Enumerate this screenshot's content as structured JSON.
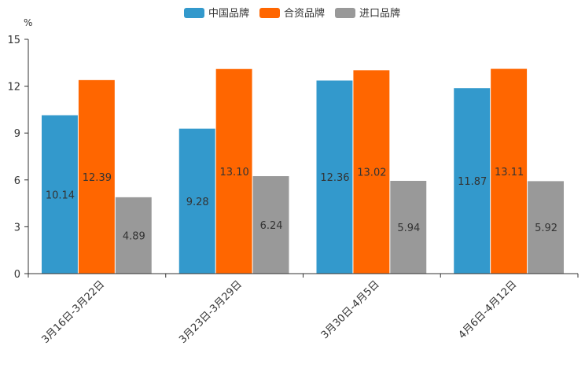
{
  "chart_data": {
    "type": "bar",
    "unit_label": "%",
    "categories": [
      "3月16日-3月22日",
      "3月23日-3月29日",
      "3月30日-4月5日",
      "4月6日-4月12日"
    ],
    "series": [
      {
        "name": "中国品牌",
        "color": "#3399cc",
        "values": [
          10.14,
          9.28,
          12.36,
          11.87
        ]
      },
      {
        "name": "合资品牌",
        "color": "#ff6600",
        "values": [
          12.39,
          13.1,
          13.02,
          13.11
        ]
      },
      {
        "name": "进口品牌",
        "color": "#999999",
        "values": [
          4.89,
          6.24,
          5.94,
          5.92
        ]
      }
    ],
    "value_labels": [
      [
        "10.14",
        "9.28",
        "12.36",
        "11.87"
      ],
      [
        "12.39",
        "13.10",
        "13.02",
        "13.11"
      ],
      [
        "4.89",
        "6.24",
        "5.94",
        "5.92"
      ]
    ],
    "y_ticks": [
      "0",
      "3",
      "6",
      "9",
      "12",
      "15"
    ],
    "ylim": [
      0,
      15
    ],
    "legend_position": "top-center",
    "grid": false
  }
}
